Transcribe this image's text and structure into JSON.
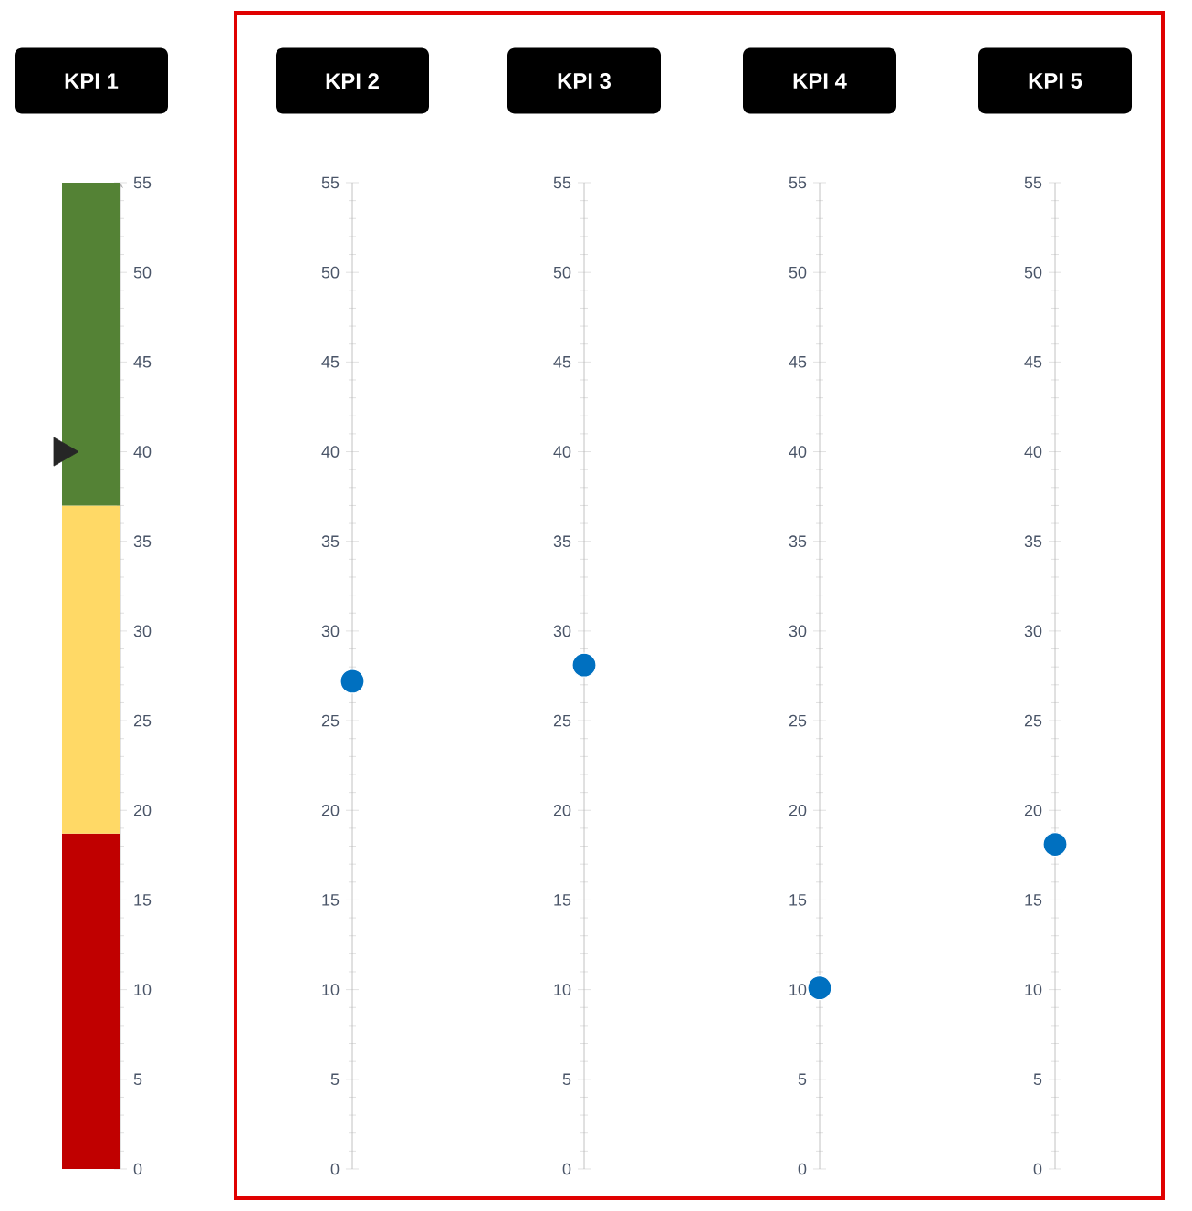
{
  "chart_data": [
    {
      "type": "bar",
      "stacked": true,
      "categories": [
        "KPI 1"
      ],
      "marker": "triangle",
      "ylim": [
        0,
        55
      ],
      "yticks": [
        0,
        5,
        10,
        15,
        20,
        25,
        30,
        35,
        40,
        45,
        50,
        55
      ],
      "series": [
        {
          "color": "#c00000",
          "values": [
            18.7
          ]
        },
        {
          "color": "#ffd966",
          "values": [
            18.3
          ]
        },
        {
          "color": "#548235",
          "values": [
            18
          ]
        },
        {
          "type": "scatter",
          "color": "#262626",
          "values": [
            40
          ]
        }
      ]
    },
    {
      "type": "scatter",
      "categories": [
        "KPI 2"
      ],
      "values": [
        27.2
      ],
      "color": "#0070c0",
      "marker": "circle",
      "ylim": [
        0,
        55
      ],
      "yticks": [
        0,
        5,
        10,
        15,
        20,
        25,
        30,
        35,
        40,
        45,
        50,
        55
      ]
    },
    {
      "type": "scatter",
      "categories": [
        "KPI 3"
      ],
      "values": [
        28.1
      ],
      "color": "#0070c0",
      "marker": "circle",
      "ylim": [
        0,
        55
      ],
      "yticks": [
        0,
        5,
        10,
        15,
        20,
        25,
        30,
        35,
        40,
        45,
        50,
        55
      ]
    },
    {
      "type": "scatter",
      "categories": [
        "KPI 4"
      ],
      "values": [
        10.1
      ],
      "color": "#0070c0",
      "marker": "circle",
      "ylim": [
        0,
        55
      ],
      "yticks": [
        0,
        5,
        10,
        15,
        20,
        25,
        30,
        35,
        40,
        45,
        50,
        55
      ]
    },
    {
      "type": "scatter",
      "categories": [
        "KPI 5"
      ],
      "values": [
        18.1
      ],
      "color": "#0070c0",
      "marker": "circle",
      "ylim": [
        0,
        55
      ],
      "yticks": [
        0,
        5,
        10,
        15,
        20,
        25,
        30,
        35,
        40,
        45,
        50,
        55
      ]
    }
  ]
}
